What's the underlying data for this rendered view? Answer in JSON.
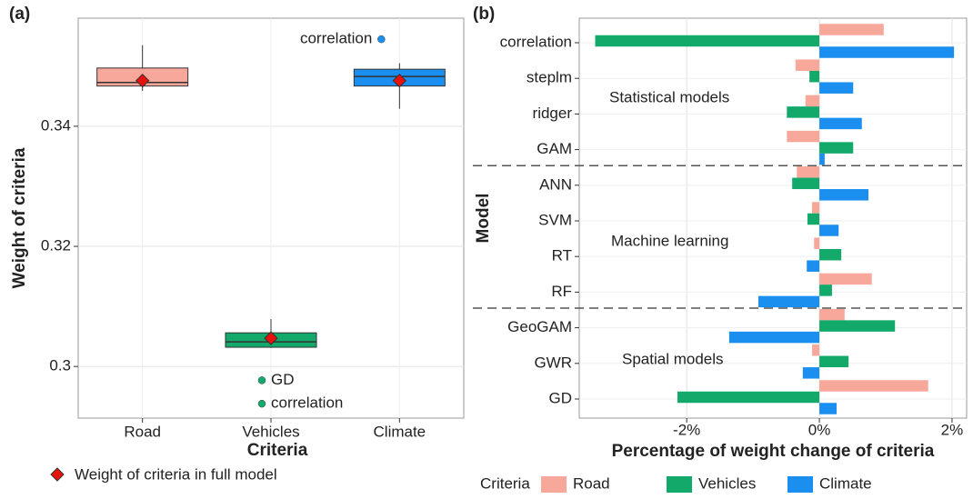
{
  "chart_data": [
    {
      "type": "box",
      "panel_label": "(a)",
      "x_label": "Criteria",
      "y_label": "Weight of criteria",
      "categories": [
        "Road",
        "Vehicles",
        "Climate"
      ],
      "colors": [
        "#f8a89a",
        "#12a96b",
        "#1a8ff0"
      ],
      "boxes": [
        {
          "whisker_low": 0.3459,
          "q1": 0.3467,
          "median": 0.3473,
          "q3": 0.3497,
          "whisker_high": 0.3535,
          "mean": 0.3476,
          "outliers": []
        },
        {
          "whisker_low": 0.3031,
          "q1": 0.3032,
          "median": 0.3041,
          "q3": 0.3056,
          "whisker_high": 0.3079,
          "mean": 0.3047,
          "outliers": [
            {
              "value": 0.2977,
              "label": "GD"
            },
            {
              "value": 0.2938,
              "label": "correlation"
            }
          ]
        },
        {
          "whisker_low": 0.3429,
          "q1": 0.3467,
          "median": 0.3483,
          "q3": 0.3495,
          "whisker_high": 0.3505,
          "mean": 0.3476,
          "outliers": [
            {
              "value": 0.3545,
              "label": "correlation"
            }
          ]
        }
      ],
      "mean_label": "Weight of criteria in full model",
      "mean_color": "#e8120c",
      "ylim": [
        0.2914,
        0.358
      ],
      "yticks": [
        0.3,
        0.32,
        0.34
      ],
      "grid": true
    },
    {
      "type": "hbar",
      "panel_label": "(b)",
      "x_label": "Percentage of weight change of criteria",
      "y_label": "Model",
      "legend_title": "Criteria",
      "legend": "bottom",
      "categories": [
        "correlation",
        "steplm",
        "ridger",
        "GAM",
        "ANN",
        "SVM",
        "RT",
        "RF",
        "GeoGAM",
        "GWR",
        "GD"
      ],
      "series": [
        {
          "name": "Road",
          "color": "#f8a89a",
          "values": [
            0.97,
            -0.36,
            -0.21,
            -0.49,
            -0.34,
            -0.11,
            -0.08,
            0.79,
            0.38,
            -0.11,
            1.64
          ]
        },
        {
          "name": "Vehicles",
          "color": "#12a96b",
          "values": [
            -3.38,
            -0.15,
            -0.49,
            0.51,
            -0.41,
            -0.18,
            0.33,
            0.19,
            1.14,
            0.44,
            -2.14
          ]
        },
        {
          "name": "Climate",
          "color": "#1a8ff0",
          "values": [
            2.03,
            0.51,
            0.64,
            0.08,
            0.74,
            0.29,
            -0.19,
            -0.92,
            -1.36,
            -0.25,
            0.26
          ]
        }
      ],
      "annotations": [
        "Statistical models",
        "Machine learning",
        "Spatial models"
      ],
      "xlim": [
        -3.62,
        2.22
      ],
      "xticks": [
        {
          "value": -2,
          "label": "-2%"
        },
        {
          "value": 0,
          "label": "0%"
        },
        {
          "value": 2,
          "label": "2%"
        }
      ],
      "grid": true
    }
  ]
}
